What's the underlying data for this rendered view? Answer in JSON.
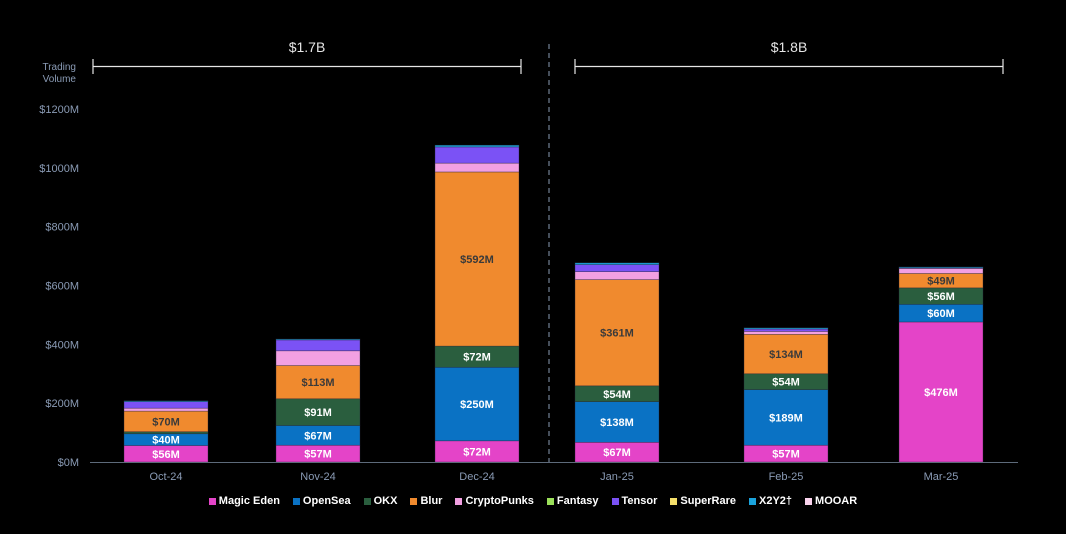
{
  "chart_data": {
    "type": "bar",
    "stacked": true,
    "title": "",
    "ylabel": "Trading Volume",
    "xlabel": "",
    "ylim": [
      0,
      1200
    ],
    "yticks": [
      0,
      200,
      400,
      600,
      800,
      1000,
      1200
    ],
    "ytick_labels": [
      "$0M",
      "$200M",
      "$400M",
      "$600M",
      "$800M",
      "$1000M",
      "$1200M"
    ],
    "categories": [
      "Oct-24",
      "Nov-24",
      "Dec-24",
      "Jan-25",
      "Feb-25",
      "Mar-25"
    ],
    "series": [
      {
        "name": "Magic Eden",
        "color": "#e444c8",
        "label_color": "#ffffff",
        "values": [
          56,
          57,
          72,
          67,
          57,
          476
        ],
        "labels": [
          "$56M",
          "$57M",
          "$72M",
          "$67M",
          "$57M",
          "$476M"
        ]
      },
      {
        "name": "OpenSea",
        "color": "#0a72c4",
        "label_color": "#ffffff",
        "values": [
          40,
          67,
          250,
          138,
          189,
          60
        ],
        "labels": [
          "$40M",
          "$67M",
          "$250M",
          "$138M",
          "$189M",
          "$60M"
        ]
      },
      {
        "name": "OKX",
        "color": "#2a5e3e",
        "label_color": "#ffffff",
        "values": [
          7,
          91,
          72,
          54,
          54,
          56
        ],
        "labels": [
          "",
          "$91M",
          "$72M",
          "$54M",
          "$54M",
          "$56M"
        ]
      },
      {
        "name": "Blur",
        "color": "#f08a2e",
        "label_color": "#3a3a3a",
        "values": [
          70,
          113,
          592,
          361,
          134,
          49
        ],
        "labels": [
          "$70M",
          "$113M",
          "$592M",
          "$361M",
          "$134M",
          "$49M"
        ]
      },
      {
        "name": "CryptoPunks",
        "color": "#f2a0e2",
        "label_color": "#3a3a3a",
        "values": [
          10,
          50,
          30,
          27,
          10,
          17
        ],
        "labels": [
          "",
          "",
          "",
          "",
          "",
          ""
        ]
      },
      {
        "name": "Fantasy",
        "color": "#9be05a",
        "label_color": "#3a3a3a",
        "values": [
          0,
          0,
          0,
          0,
          0,
          0
        ],
        "labels": [
          "",
          "",
          "",
          "",
          "",
          ""
        ]
      },
      {
        "name": "Tensor",
        "color": "#7b52f5",
        "label_color": "#ffffff",
        "values": [
          22,
          37,
          55,
          24,
          8,
          2
        ],
        "labels": [
          "",
          "",
          "",
          "",
          "",
          ""
        ]
      },
      {
        "name": "SuperRare",
        "color": "#f5df6a",
        "label_color": "#3a3a3a",
        "values": [
          0,
          0,
          0,
          0,
          0,
          0
        ],
        "labels": [
          "",
          "",
          "",
          "",
          "",
          ""
        ]
      },
      {
        "name": "X2Y2†",
        "color": "#1aa3dc",
        "label_color": "#ffffff",
        "values": [
          3,
          3,
          6,
          6,
          4,
          3
        ],
        "labels": [
          "",
          "",
          "",
          "",
          "",
          ""
        ]
      },
      {
        "name": "MOOAR",
        "color": "#fbd4ee",
        "label_color": "#3a3a3a",
        "values": [
          0,
          0,
          0,
          0,
          0,
          0
        ],
        "labels": [
          "",
          "",
          "",
          "",
          "",
          ""
        ]
      }
    ],
    "annotations": [
      {
        "text": "$1.7B",
        "span": [
          "Oct-24",
          "Dec-24"
        ]
      },
      {
        "text": "$1.8B",
        "span": [
          "Jan-25",
          "Mar-25"
        ]
      }
    ],
    "divider_between": [
      "Dec-24",
      "Jan-25"
    ],
    "grid": false,
    "legend_position": "bottom"
  },
  "axis_title_line1": "Trading",
  "axis_title_line2": "Volume"
}
